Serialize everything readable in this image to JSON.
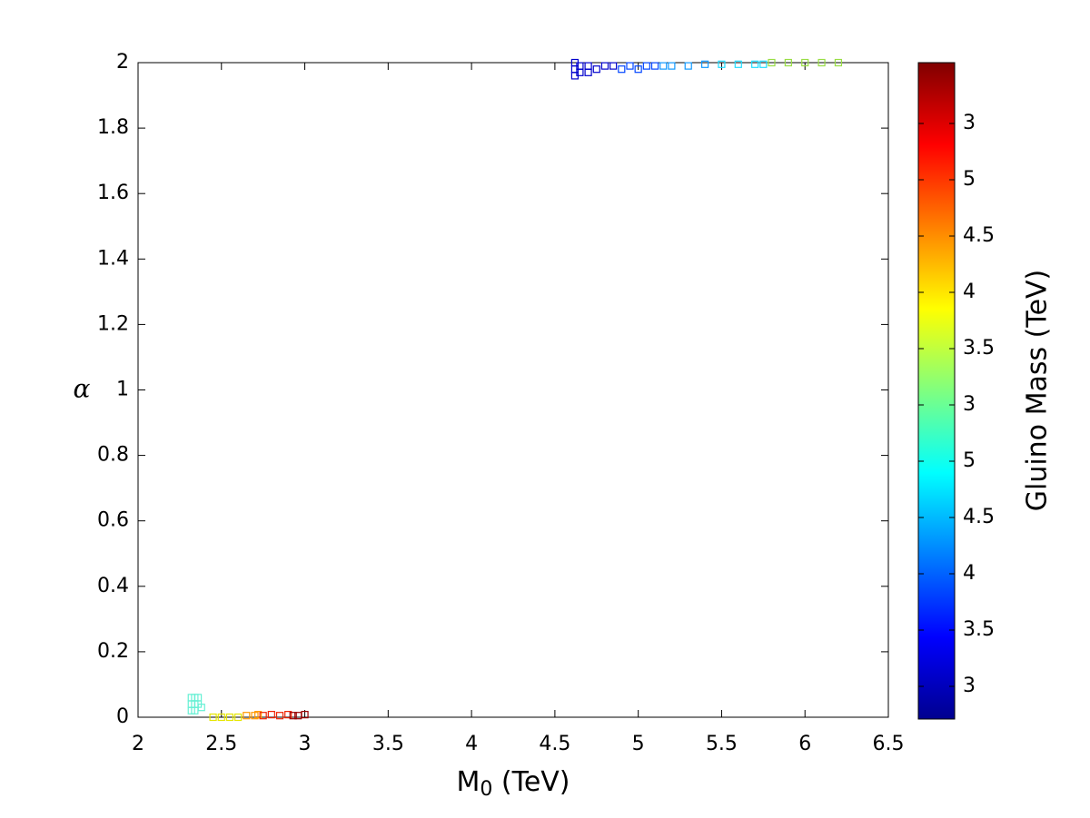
{
  "chart_data": {
    "type": "scatter",
    "x_label": "M",
    "x_label_sub": "0",
    "x_label_unit": " (TeV)",
    "y_label": "α",
    "colorbar_label": "Gluino Mass (TeV)",
    "colorbar_labels": [
      "3",
      "3.5",
      "4",
      "4.5",
      "5",
      "3",
      "3.5",
      "4",
      "4.5",
      "5",
      "3"
    ],
    "xlim": [
      2,
      6.5
    ],
    "xticks": [
      2,
      2.5,
      3,
      3.5,
      4,
      4.5,
      5,
      5.5,
      6,
      6.5
    ],
    "ylim": [
      0,
      2
    ],
    "yticks": [
      0,
      0.2,
      0.4,
      0.6,
      0.8,
      1,
      1.2,
      1.4,
      1.6,
      1.8,
      2
    ],
    "series": [
      {
        "color": "#66f0d4",
        "x": [
          2.32,
          2.34,
          2.36,
          2.32,
          2.34,
          2.36,
          2.38,
          2.32,
          2.34
        ],
        "y": [
          0.06,
          0.06,
          0.06,
          0.04,
          0.04,
          0.04,
          0.03,
          0.02,
          0.02
        ]
      },
      {
        "color": "#e6e600",
        "x": [
          2.45,
          2.5,
          2.55,
          2.6
        ],
        "y": [
          0,
          0,
          0,
          0
        ]
      },
      {
        "color": "#ff9900",
        "x": [
          2.65,
          2.7,
          2.72
        ],
        "y": [
          0.005,
          0.005,
          0.008
        ]
      },
      {
        "color": "#ee2200",
        "x": [
          2.75,
          2.8,
          2.85,
          2.9
        ],
        "y": [
          0.005,
          0.008,
          0.005,
          0.008
        ]
      },
      {
        "color": "#990000",
        "x": [
          2.93,
          2.96,
          3.0
        ],
        "y": [
          0.005,
          0.005,
          0.008
        ]
      },
      {
        "color": "#0000cc",
        "x": [
          4.62,
          4.62,
          4.62,
          4.65,
          4.65,
          4.7,
          4.7,
          4.75,
          4.8,
          4.85
        ],
        "y": [
          1.96,
          1.98,
          2.0,
          1.97,
          1.99,
          1.97,
          1.99,
          1.98,
          1.99,
          1.99
        ]
      },
      {
        "color": "#0044ff",
        "x": [
          4.9,
          4.95,
          5.0,
          5.05,
          5.1
        ],
        "y": [
          1.98,
          1.99,
          1.98,
          1.99,
          1.99
        ]
      },
      {
        "color": "#1199ff",
        "x": [
          5.15,
          5.2,
          5.3,
          5.4
        ],
        "y": [
          1.99,
          1.99,
          1.99,
          1.995
        ]
      },
      {
        "color": "#22ddff",
        "x": [
          5.5,
          5.6,
          5.7,
          5.75
        ],
        "y": [
          1.995,
          1.995,
          1.995,
          1.995
        ]
      },
      {
        "color": "#99dd44",
        "x": [
          5.8,
          5.9,
          6.0,
          6.1,
          6.2
        ],
        "y": [
          2.0,
          2.0,
          2.0,
          2.0,
          2.0
        ]
      }
    ]
  }
}
